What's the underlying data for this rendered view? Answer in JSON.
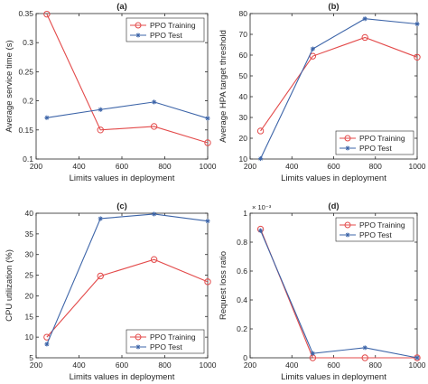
{
  "colors": {
    "training": "#e34a4a",
    "test": "#3c64a8",
    "axis": "#262626"
  },
  "chart_data": [
    {
      "type": "line",
      "title": "(a)",
      "xlabel": "Limits values in deployment",
      "ylabel": "Average service time (s)",
      "xlim": [
        200,
        1000
      ],
      "ylim": [
        0.1,
        0.35
      ],
      "xticks": [
        200,
        400,
        600,
        800,
        1000
      ],
      "yticks": [
        0.1,
        0.15,
        0.2,
        0.25,
        0.3,
        0.35
      ],
      "ytick_labels": [
        "0.1",
        "0.15",
        "0.2",
        "0.25",
        "0.3",
        "0.35"
      ],
      "exponent_label": "",
      "legend": "top-right",
      "grid": false,
      "x": [
        250,
        500,
        750,
        1000
      ],
      "series": [
        {
          "name": "PPO Training",
          "marker": "circle",
          "values": [
            0.349,
            0.15,
            0.156,
            0.128
          ]
        },
        {
          "name": "PPO Test",
          "marker": "star",
          "values": [
            0.171,
            0.185,
            0.198,
            0.17
          ]
        }
      ]
    },
    {
      "type": "line",
      "title": "(b)",
      "xlabel": "Limits values in deployment",
      "ylabel": "Average HPA target threshold",
      "xlim": [
        200,
        1000
      ],
      "ylim": [
        10,
        80
      ],
      "xticks": [
        200,
        400,
        600,
        800,
        1000
      ],
      "yticks": [
        10,
        20,
        30,
        40,
        50,
        60,
        70,
        80
      ],
      "ytick_labels": [
        "10",
        "20",
        "30",
        "40",
        "50",
        "60",
        "70",
        "80"
      ],
      "exponent_label": "",
      "legend": "bottom-right",
      "grid": false,
      "x": [
        250,
        500,
        750,
        1000
      ],
      "series": [
        {
          "name": "PPO Training",
          "marker": "circle",
          "values": [
            23.5,
            59.5,
            68.5,
            59
          ]
        },
        {
          "name": "PPO Test",
          "marker": "star",
          "values": [
            10.2,
            63,
            77.5,
            75
          ]
        }
      ]
    },
    {
      "type": "line",
      "title": "(c)",
      "xlabel": "Limits values in deployment",
      "ylabel": "CPU utilization (%)",
      "xlim": [
        200,
        1000
      ],
      "ylim": [
        5,
        40
      ],
      "xticks": [
        200,
        400,
        600,
        800,
        1000
      ],
      "yticks": [
        5,
        10,
        15,
        20,
        25,
        30,
        35,
        40
      ],
      "ytick_labels": [
        "5",
        "10",
        "15",
        "20",
        "25",
        "30",
        "35",
        "40"
      ],
      "exponent_label": "",
      "legend": "bottom-right",
      "grid": false,
      "x": [
        250,
        500,
        750,
        1000
      ],
      "series": [
        {
          "name": "PPO Training",
          "marker": "circle",
          "values": [
            10,
            24.8,
            28.8,
            23.4
          ]
        },
        {
          "name": "PPO Test",
          "marker": "star",
          "values": [
            8.3,
            38.7,
            39.8,
            38.1
          ]
        }
      ]
    },
    {
      "type": "line",
      "title": "(d)",
      "xlabel": "Limits values in deployment",
      "ylabel": "Request loss ratio",
      "xlim": [
        200,
        1000
      ],
      "ylim": [
        0,
        0.001
      ],
      "xticks": [
        200,
        400,
        600,
        800,
        1000
      ],
      "yticks": [
        0,
        0.0002,
        0.0004,
        0.0006,
        0.0008,
        0.001
      ],
      "ytick_labels": [
        "0",
        "0.2",
        "0.4",
        "0.6",
        "0.8",
        "1"
      ],
      "exponent_label": "× 10⁻³",
      "legend": "top-right",
      "grid": false,
      "x": [
        250,
        500,
        750,
        1000
      ],
      "series": [
        {
          "name": "PPO Training",
          "marker": "circle",
          "values": [
            0.00089,
            0.0,
            0.0,
            0.0
          ]
        },
        {
          "name": "PPO Test",
          "marker": "star",
          "values": [
            0.00088,
            3e-05,
            7e-05,
            0.0
          ]
        }
      ]
    }
  ]
}
